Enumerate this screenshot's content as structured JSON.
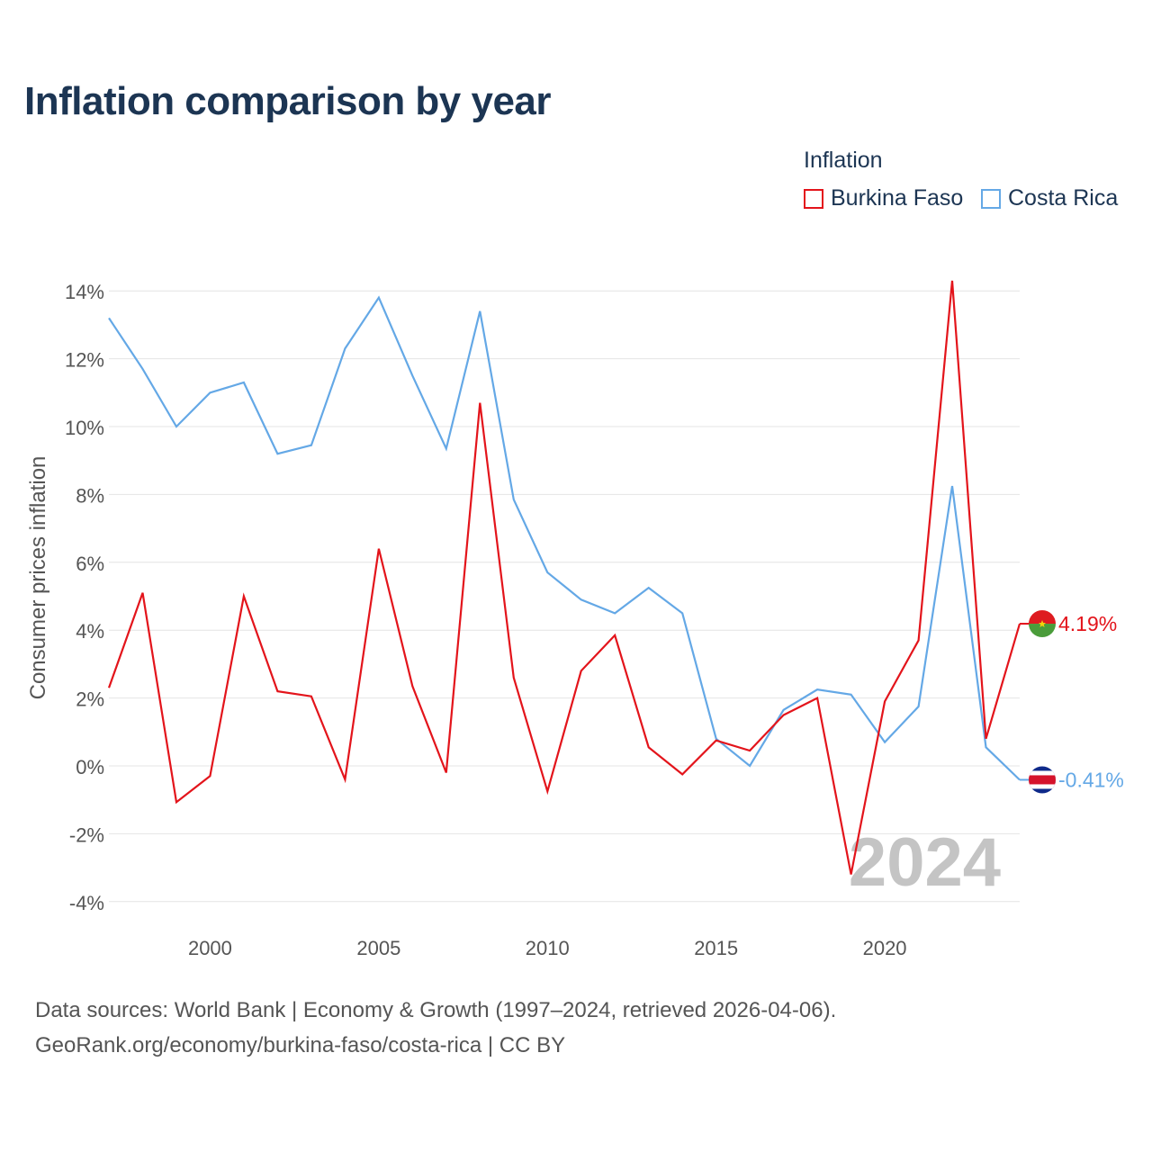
{
  "page": {
    "title": "Inflation comparison by year",
    "legend_title": "Inflation",
    "source_line1": "Data sources: World Bank | Economy & Growth (1997–2024, retrieved 2026-04-06).",
    "source_line2": "GeoRank.org/economy/burkina-faso/costa-rica | CC BY"
  },
  "colors": {
    "burkina_faso": "#e3141b",
    "costa_rica": "#64a8e6",
    "grid": "#e4e4e4",
    "tick": "#555555",
    "watermark": "#c4c4c4"
  },
  "chart_data": {
    "type": "line",
    "title": "Inflation comparison by year",
    "ylabel": "Consumer prices inflation",
    "xlabel": "",
    "ylim": [
      -4.5,
      14.8
    ],
    "xlim": [
      1997,
      2024
    ],
    "y_ticks": [
      -4,
      -2,
      0,
      2,
      4,
      6,
      8,
      10,
      12,
      14
    ],
    "y_tick_labels": [
      "-4%",
      "-2%",
      "0%",
      "2%",
      "4%",
      "6%",
      "8%",
      "10%",
      "12%",
      "14%"
    ],
    "x_ticks": [
      2000,
      2005,
      2010,
      2015,
      2020
    ],
    "x_tick_labels": [
      "2000",
      "2005",
      "2010",
      "2015",
      "2020"
    ],
    "watermark_year": "2024",
    "legend_position": "top-right",
    "x": [
      1997,
      1998,
      1999,
      2000,
      2001,
      2002,
      2003,
      2004,
      2005,
      2006,
      2007,
      2008,
      2009,
      2010,
      2011,
      2012,
      2013,
      2014,
      2015,
      2016,
      2017,
      2018,
      2019,
      2020,
      2021,
      2022,
      2023,
      2024
    ],
    "series": [
      {
        "key": "burkina_faso",
        "name": "Burkina Faso",
        "end_label": "4.19%",
        "values": [
          2.3,
          5.1,
          -1.07,
          -0.3,
          5.0,
          2.2,
          2.05,
          -0.4,
          6.4,
          2.35,
          -0.2,
          10.7,
          2.6,
          -0.75,
          2.8,
          3.85,
          0.55,
          -0.25,
          0.75,
          0.45,
          1.5,
          2.0,
          -3.2,
          1.9,
          3.7,
          14.3,
          0.8,
          4.19
        ]
      },
      {
        "key": "costa_rica",
        "name": "Costa Rica",
        "end_label": "-0.41%",
        "values": [
          13.2,
          11.7,
          10.0,
          11.0,
          11.3,
          9.2,
          9.45,
          12.3,
          13.8,
          11.5,
          9.35,
          13.4,
          7.85,
          5.7,
          4.9,
          4.5,
          5.25,
          4.5,
          0.8,
          0.0,
          1.65,
          2.25,
          2.1,
          0.7,
          1.75,
          8.25,
          0.55,
          -0.41
        ]
      }
    ]
  }
}
